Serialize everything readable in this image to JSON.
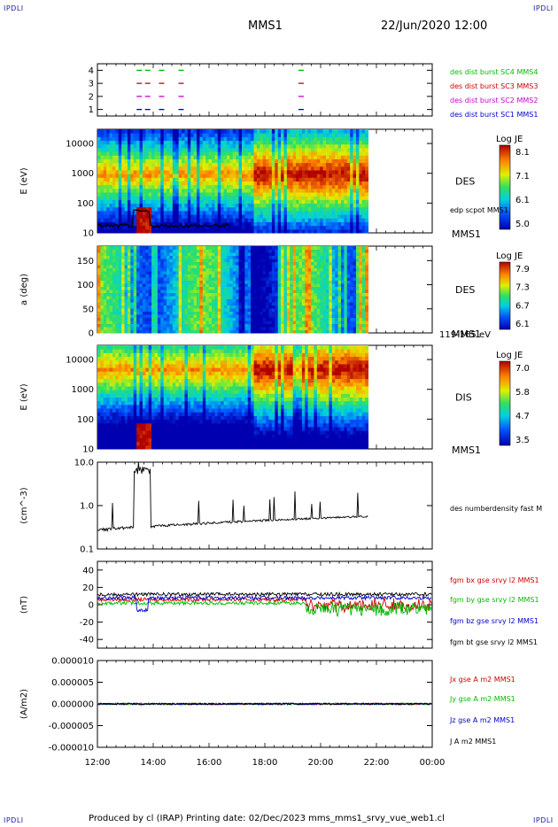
{
  "corners": {
    "tl": "IPDLI",
    "tr": "IPDLI",
    "bl": "IPDLI",
    "br": "IPDLI"
  },
  "header": {
    "spacecraft": "MMS1",
    "datetime": "22/Jun/2020 12:00"
  },
  "footer": "Produced by cl (IRAP)   Printing date: 02/Dec/2023   mms_mms1_srvy_vue_web1.cl",
  "time_axis": {
    "start": "12:00",
    "end": "00:00",
    "ticks": [
      "12:00",
      "14:00",
      "16:00",
      "18:00",
      "20:00",
      "22:00",
      "00:00"
    ],
    "data_end_hour": 21.7
  },
  "chart_data": [
    {
      "type": "scatter",
      "panel": "burst",
      "yticks": [
        "1",
        "2",
        "3",
        "4"
      ],
      "series": [
        {
          "name": "des dist burst SC1 MMS1",
          "color": "#0000cc",
          "y": 1,
          "x_hours": [
            13.5,
            13.8,
            14.3,
            15.0,
            19.3
          ]
        },
        {
          "name": "des dist burst SC2 MMS2",
          "color": "#cc00cc",
          "y": 2,
          "x_hours": [
            13.5,
            13.8,
            14.3,
            15.0,
            19.3
          ]
        },
        {
          "name": "des dist burst SC3 MMS3",
          "color": "#cc0000",
          "y": 3,
          "x_hours": [
            13.5,
            13.8,
            14.3,
            15.0,
            19.3
          ]
        },
        {
          "name": "des dist burst SC4 MMS4",
          "color": "#00bb00",
          "y": 4,
          "x_hours": [
            13.5,
            13.8,
            14.3,
            15.0,
            19.3
          ]
        }
      ]
    },
    {
      "type": "heatmap",
      "panel": "des_energy",
      "ylabel": "E (eV)",
      "yscale": "log",
      "ylim": [
        10,
        30000
      ],
      "yticks": [
        "10",
        "100",
        "1000",
        "10000"
      ],
      "side_label": "DES",
      "sub_label": "MMS1",
      "overlay": "edp scpot MMS1",
      "colorbar": {
        "title": "Log JE",
        "ticks": [
          "8.1",
          "7.1",
          "6.1",
          "5.0"
        ]
      }
    },
    {
      "type": "heatmap",
      "panel": "des_pitch",
      "ylabel": "a (deg)",
      "ylim": [
        0,
        180
      ],
      "yticks": [
        "0",
        "50",
        "100",
        "150"
      ],
      "side_label": "DES",
      "sub_label": "MMS1",
      "range_label": "119-165 eV",
      "colorbar": {
        "title": "Log JE",
        "ticks": [
          "7.9",
          "7.3",
          "6.7",
          "6.1"
        ]
      }
    },
    {
      "type": "heatmap",
      "panel": "dis_energy",
      "ylabel": "E (eV)",
      "yscale": "log",
      "ylim": [
        10,
        30000
      ],
      "yticks": [
        "10",
        "100",
        "1000",
        "10000"
      ],
      "side_label": "DIS",
      "sub_label": "MMS1",
      "colorbar": {
        "title": "Log JE",
        "ticks": [
          "7.0",
          "5.8",
          "4.7",
          "3.5"
        ]
      }
    },
    {
      "type": "line",
      "panel": "density",
      "ylabel": "(cm^-3)",
      "yscale": "log",
      "ylim": [
        0.1,
        10
      ],
      "yticks": [
        "0.1",
        "1.0",
        "10.0"
      ],
      "series": [
        {
          "name": "des numberdensity fast M",
          "color": "#000000"
        }
      ]
    },
    {
      "type": "line",
      "panel": "bfield",
      "ylabel": "(nT)",
      "ylim": [
        -50,
        50
      ],
      "yticks": [
        "40",
        "20",
        "0",
        "-20",
        "-40"
      ],
      "series": [
        {
          "name": "fgm bx gse srvy l2 MMS1",
          "color": "#cc0000"
        },
        {
          "name": "fgm by gse srvy l2 MMS1",
          "color": "#00bb00"
        },
        {
          "name": "fgm bz gse srvy l2 MMS1",
          "color": "#0000cc"
        },
        {
          "name": "fgm bt gse srvy l2 MMS1",
          "color": "#000000"
        }
      ]
    },
    {
      "type": "line",
      "panel": "current",
      "ylabel": "(A/m2)",
      "ylim": [
        -1e-05,
        1e-05
      ],
      "yticks": [
        "0.000010",
        "0.000005",
        "0.000000",
        "-0.000005",
        "-0.000010"
      ],
      "series": [
        {
          "name": "Jx gse A m2 MMS1",
          "color": "#cc0000"
        },
        {
          "name": "Jy gse A m2 MMS1",
          "color": "#00bb00"
        },
        {
          "name": "Jz gse A m2 MMS1",
          "color": "#0000cc"
        },
        {
          "name": "J A m2 MMS1",
          "color": "#000000"
        }
      ]
    }
  ]
}
